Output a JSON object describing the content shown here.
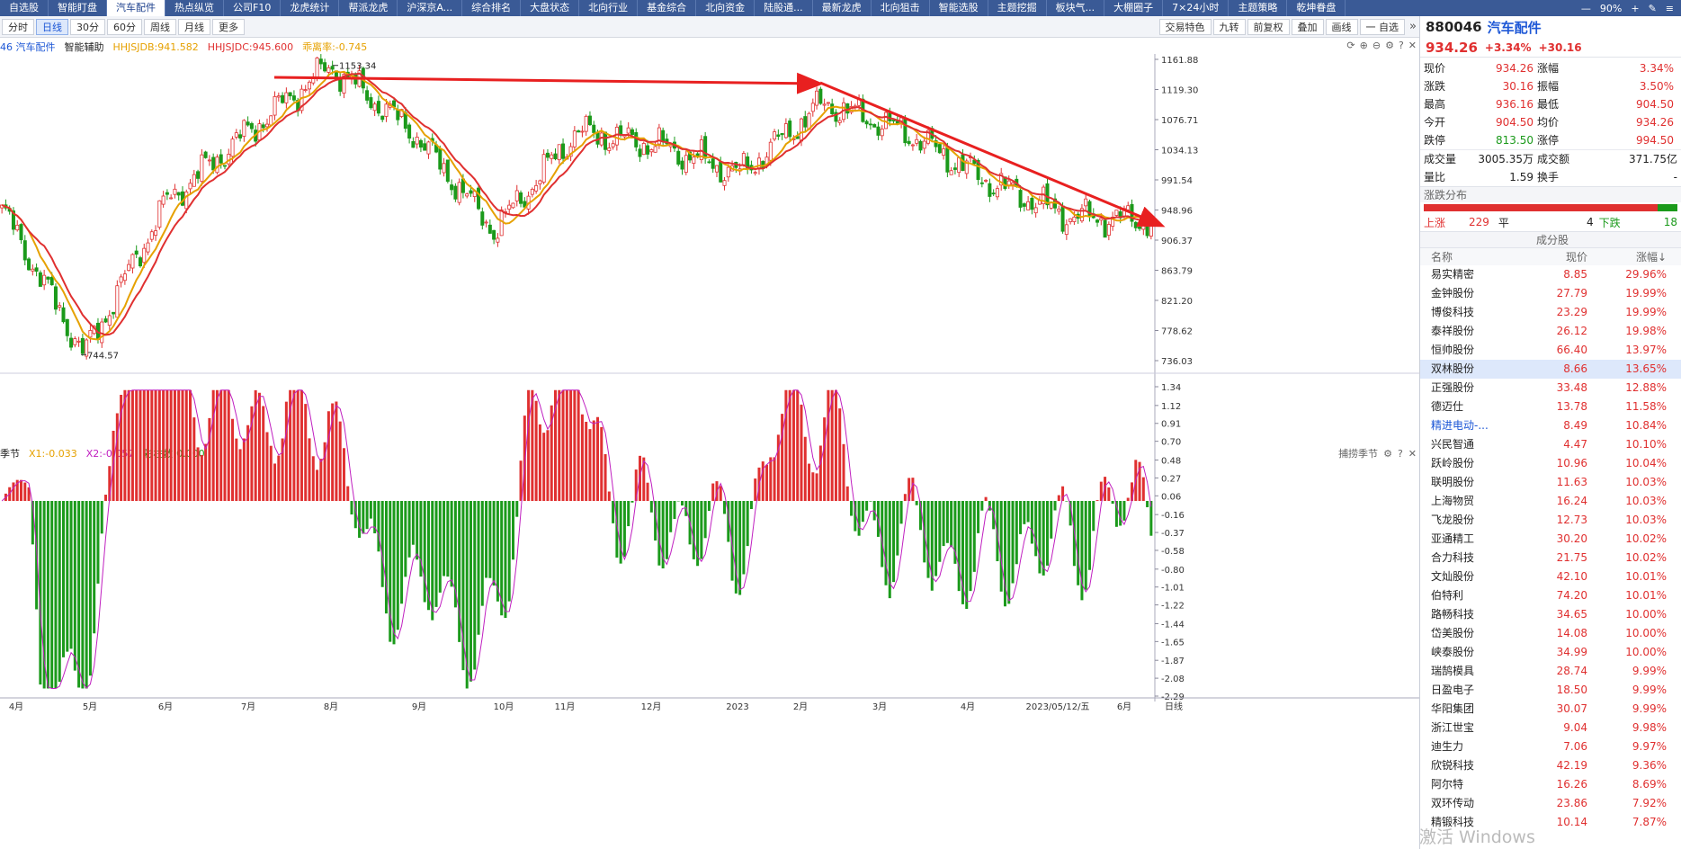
{
  "nav": {
    "tabs": [
      "自选股",
      "智能盯盘",
      "汽车配件",
      "热点纵览",
      "公司F10",
      "龙虎统计",
      "帮派龙虎",
      "沪深京A...",
      "综合排名",
      "大盘状态",
      "北向行业",
      "基金综合",
      "北向资金",
      "陆股通...",
      "最新龙虎",
      "北向狙击",
      "智能选股",
      "主题挖掘",
      "板块气...",
      "大棚圈子",
      "7×24小时",
      "主题策略",
      "乾坤眷盘"
    ],
    "active_index": 2,
    "zoom": "90%"
  },
  "toolbar": {
    "left": [
      "分时",
      "日线",
      "30分",
      "60分",
      "周线",
      "月线",
      "更多"
    ],
    "active_index": 1,
    "right": [
      "交易特色",
      "九转",
      "前复权",
      "叠加",
      "画线",
      "一 自选"
    ]
  },
  "legend_main": {
    "code_name": "46 汽车配件",
    "assist": "智能辅助",
    "hhjsjdb": "HHJSJDB:941.582",
    "hhjsjdc": "HHJSJDC:945.600",
    "rate": "乖离率:-0.745"
  },
  "legend_sub": {
    "name": "季节",
    "x1": "X1:-0.033",
    "x2": "X2:-0.057",
    "count": "彩柱数:0.000",
    "right_label": "捕捞季节"
  },
  "price_axis": [
    "1161.88",
    "1119.30",
    "1076.71",
    "1034.13",
    "991.54",
    "948.96",
    "906.37",
    "863.79",
    "821.20",
    "778.62",
    "736.03"
  ],
  "sub_axis": [
    "1.34",
    "1.12",
    "0.91",
    "0.70",
    "0.48",
    "0.27",
    "0.06",
    "-0.16",
    "-0.37",
    "-0.58",
    "-0.80",
    "-1.01",
    "-1.22",
    "-1.44",
    "-1.65",
    "-1.87",
    "-2.08",
    "-2.29"
  ],
  "time_axis": [
    "4月",
    "5月",
    "6月",
    "7月",
    "8月",
    "9月",
    "10月",
    "11月",
    "12月",
    "2023",
    "2月",
    "3月",
    "4月",
    "2023/05/12/五",
    "6月",
    "日线"
  ],
  "annotations": {
    "high": "1153.34",
    "low": "744.57"
  },
  "quote": {
    "code": "880046",
    "name": "汽车配件",
    "price": "934.26",
    "change_pct": "+3.34%",
    "change": "+30.16",
    "rows": [
      [
        "现价",
        "934.26",
        "涨幅",
        "3.34%"
      ],
      [
        "涨跌",
        "30.16",
        "振幅",
        "3.50%"
      ],
      [
        "最高",
        "936.16",
        "最低",
        "904.50"
      ],
      [
        "今开",
        "904.50",
        "均价",
        "934.26"
      ],
      [
        "跌停",
        "813.50",
        "涨停",
        "994.50"
      ]
    ],
    "volume_label": "成交量",
    "volume": "3005.35万",
    "amount_label": "成交额",
    "amount": "371.75亿",
    "ratio_label": "量比",
    "ratio": "1.59",
    "turnover_label": "换手",
    "turnover": "-"
  },
  "distribution": {
    "title": "涨跌分布",
    "up_label": "上涨",
    "up": "229",
    "flat_label": "平",
    "flat": "4",
    "down_label": "下跌",
    "down": "18"
  },
  "stocks": {
    "title": "成分股",
    "headers": [
      "名称",
      "现价",
      "涨幅↓"
    ],
    "rows": [
      [
        "易实精密",
        "8.85",
        "29.96%"
      ],
      [
        "金钟股份",
        "27.79",
        "19.99%"
      ],
      [
        "博俊科技",
        "23.29",
        "19.99%"
      ],
      [
        "泰祥股份",
        "26.12",
        "19.98%"
      ],
      [
        "恒帅股份",
        "66.40",
        "13.97%"
      ],
      [
        "双林股份",
        "8.66",
        "13.65%"
      ],
      [
        "正强股份",
        "33.48",
        "12.88%"
      ],
      [
        "德迈仕",
        "13.78",
        "11.58%"
      ],
      [
        "精进电动-...",
        "8.49",
        "10.84%"
      ],
      [
        "兴民智通",
        "4.47",
        "10.10%"
      ],
      [
        "跃岭股份",
        "10.96",
        "10.04%"
      ],
      [
        "联明股份",
        "11.63",
        "10.03%"
      ],
      [
        "上海物贸",
        "16.24",
        "10.03%"
      ],
      [
        "飞龙股份",
        "12.73",
        "10.03%"
      ],
      [
        "亚通精工",
        "30.20",
        "10.02%"
      ],
      [
        "合力科技",
        "21.75",
        "10.02%"
      ],
      [
        "文灿股份",
        "42.10",
        "10.01%"
      ],
      [
        "伯特利",
        "74.20",
        "10.01%"
      ],
      [
        "路畅科技",
        "34.65",
        "10.00%"
      ],
      [
        "岱美股份",
        "14.08",
        "10.00%"
      ],
      [
        "峡泰股份",
        "34.99",
        "10.00%"
      ],
      [
        "瑞鹄模具",
        "28.74",
        "9.99%"
      ],
      [
        "日盈电子",
        "18.50",
        "9.99%"
      ],
      [
        "华阳集团",
        "30.07",
        "9.99%"
      ],
      [
        "浙江世宝",
        "9.04",
        "9.98%"
      ],
      [
        "迪生力",
        "7.06",
        "9.97%"
      ],
      [
        "欣锐科技",
        "42.19",
        "9.36%"
      ],
      [
        "阿尔特",
        "16.26",
        "8.69%"
      ],
      [
        "双环传动",
        "23.86",
        "7.92%"
      ],
      [
        "精锻科技",
        "10.14",
        "7.87%"
      ]
    ],
    "selected_index": 5,
    "link_index": 8
  },
  "watermark": "激活 Windows",
  "chart_data": {
    "type": "candlestick",
    "ylim": [
      736.03,
      1161.88
    ],
    "key_points": [
      {
        "x": "4月",
        "close": 950
      },
      {
        "x": "5月",
        "close": 744.57
      },
      {
        "x": "6月",
        "close": 960
      },
      {
        "x": "7月",
        "close": 1060
      },
      {
        "x": "8月",
        "close": 1153.34
      },
      {
        "x": "9月",
        "close": 1060
      },
      {
        "x": "10月",
        "close": 920
      },
      {
        "x": "11月",
        "close": 1060
      },
      {
        "x": "12月",
        "close": 1040
      },
      {
        "x": "2023",
        "close": 1000
      },
      {
        "x": "2月",
        "close": 1100
      },
      {
        "x": "3月",
        "close": 1060
      },
      {
        "x": "4月",
        "close": 990
      },
      {
        "x": "2023/05/12/五",
        "close": 940
      },
      {
        "x": "6月",
        "close": 934.26
      }
    ]
  }
}
